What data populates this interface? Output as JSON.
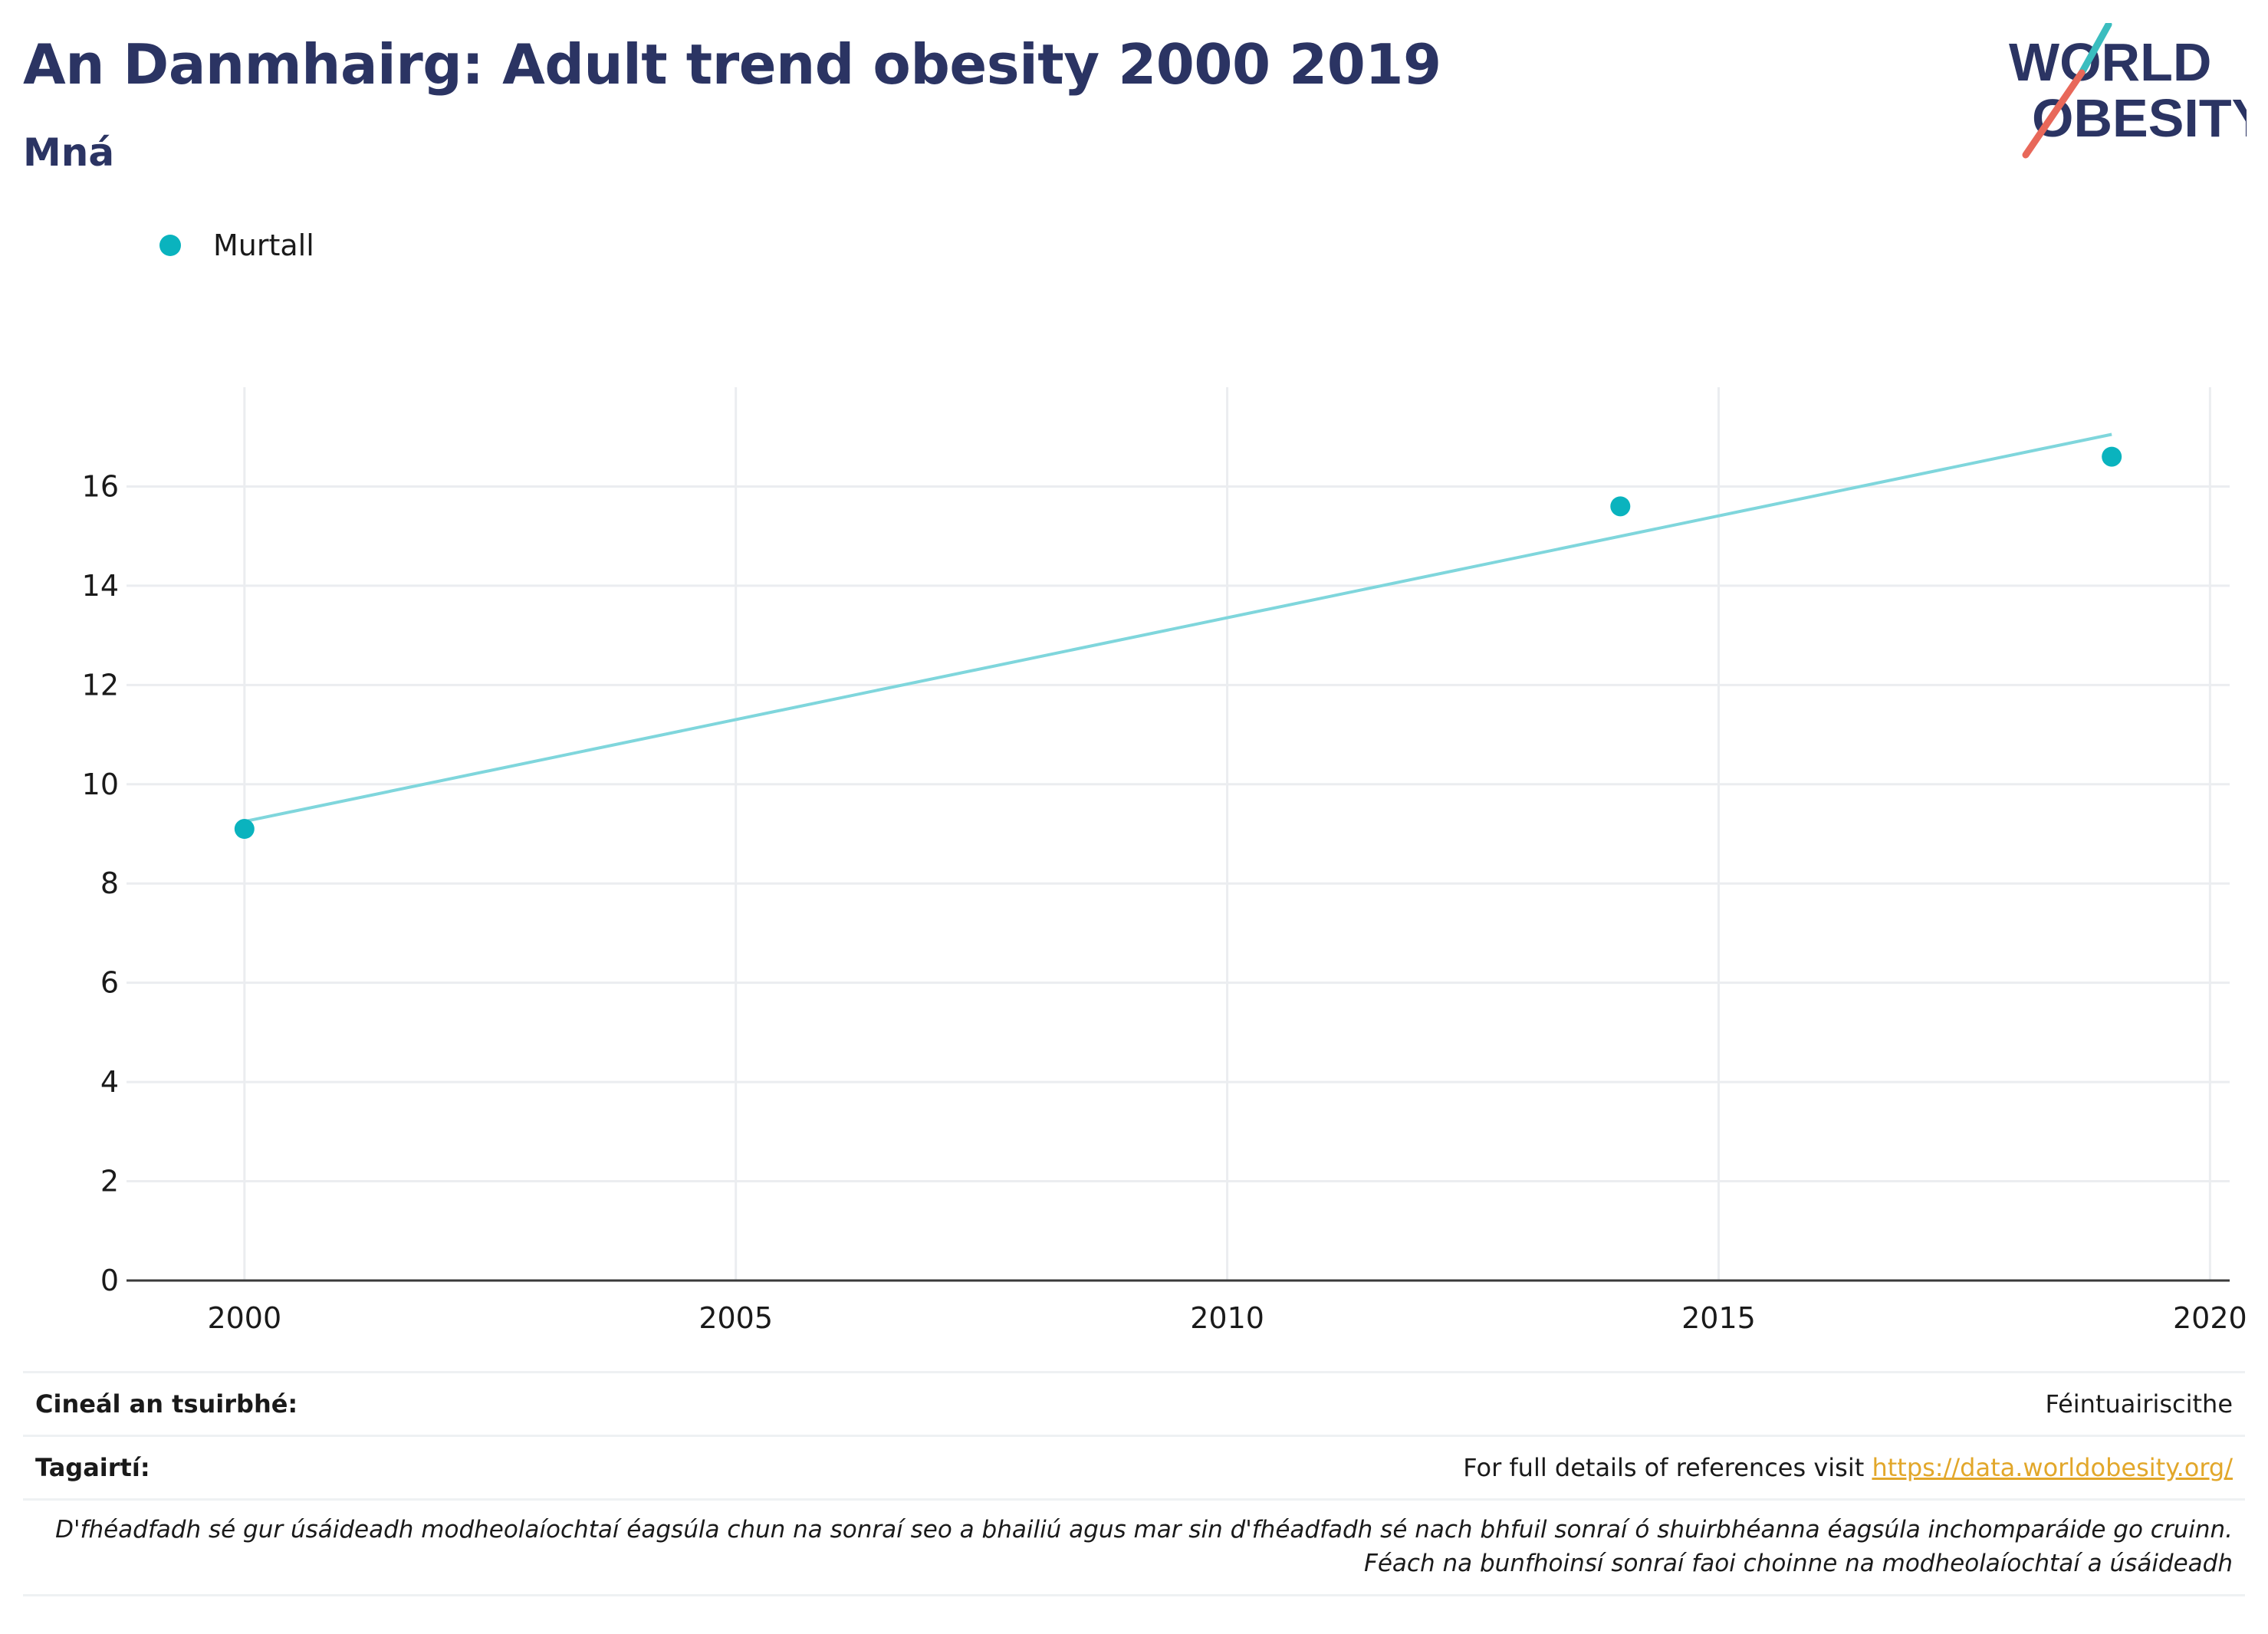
{
  "header": {
    "title": "An Danmhairg: Adult trend obesity 2000 2019",
    "subtitle": "Mná"
  },
  "logo": {
    "line1": "WORLD",
    "line2": "OBESITY"
  },
  "colors": {
    "title": "#2b3463",
    "series": "#0ab3be",
    "trend": "#7fd6dc",
    "link": "#e2a72a",
    "logo_teal": "#3bbdbf",
    "logo_red": "#e8685a"
  },
  "chart_data": {
    "type": "scatter",
    "series": [
      {
        "name": "Murtall",
        "x": [
          2000,
          2014,
          2019
        ],
        "y": [
          9.1,
          15.6,
          16.6
        ]
      }
    ],
    "trendline": {
      "x": [
        2000,
        2019
      ],
      "y": [
        9.25,
        17.05
      ]
    },
    "xlim": [
      1998.8,
      2020.2
    ],
    "ylim": [
      0,
      18
    ],
    "xticks": [
      2000,
      2005,
      2010,
      2015,
      2020
    ],
    "yticks": [
      0,
      2,
      4,
      6,
      8,
      10,
      12,
      14,
      16
    ],
    "grid": true,
    "legend": "top-left"
  },
  "info": {
    "survey_label": "Cineál an tsuirbhé:",
    "survey_value": "Féintuairiscithe",
    "refs_label": "Tagairtí:",
    "refs_text": "For full details of references visit ",
    "refs_link": "https://data.worldobesity.org/",
    "note_line1": "D'fhéadfadh sé gur úsáideadh modheolaíochtaí éagsúla chun na sonraí seo a bhailiú agus mar sin d'fhéadfadh sé nach bhfuil sonraí ó shuirbhéanna éagsúla inchomparáide go cruinn.",
    "note_line2": "Féach na bunfhoinsí sonraí faoi choinne na modheolaíochtaí a úsáideadh"
  }
}
